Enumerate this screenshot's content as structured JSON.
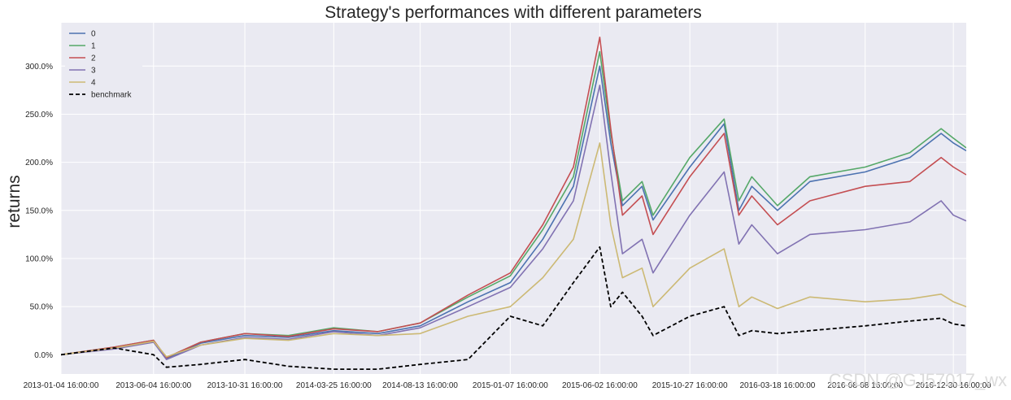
{
  "chart_data": {
    "type": "line",
    "title": "Strategy's performances with different parameters",
    "xlabel": "",
    "ylabel": "returns",
    "ylim": [
      -0.2,
      3.45
    ],
    "yticks": [
      0,
      0.5,
      1.0,
      1.5,
      2.0,
      2.5,
      3.0
    ],
    "ytick_labels": [
      "0.0%",
      "50.0%",
      "100.0%",
      "150.0%",
      "200.0%",
      "250.0%",
      "300.0%"
    ],
    "xlim": [
      "2013-01-04",
      "2017-01-20"
    ],
    "xtick_labels": [
      "2013-01-04 16:00:00",
      "2013-06-04 16:00:00",
      "2013-10-31 16:00:00",
      "2014-03-25 16:00:00",
      "2014-08-13 16:00:00",
      "2015-01-07 16:00:00",
      "2015-06-02 16:00:00",
      "2015-10-27 16:00:00",
      "2016-03-18 16:00:00",
      "2016-08-08 16:00:00",
      "2016-12-30 16:00:00"
    ],
    "grid": true,
    "legend_position": "top-left",
    "x": [
      "2013-01-04",
      "2013-04-01",
      "2013-06-04",
      "2013-06-25",
      "2013-08-20",
      "2013-10-31",
      "2014-01-10",
      "2014-03-25",
      "2014-06-05",
      "2014-08-13",
      "2014-10-30",
      "2015-01-07",
      "2015-03-01",
      "2015-04-20",
      "2015-06-02",
      "2015-06-20",
      "2015-07-09",
      "2015-08-10",
      "2015-08-28",
      "2015-10-27",
      "2015-12-22",
      "2016-01-15",
      "2016-02-05",
      "2016-03-18",
      "2016-05-10",
      "2016-08-08",
      "2016-10-20",
      "2016-12-10",
      "2016-12-30",
      "2017-01-20"
    ],
    "series": [
      {
        "name": "0",
        "color": "#4c72b0",
        "values": [
          0.0,
          0.07,
          0.14,
          -0.04,
          0.12,
          0.2,
          0.18,
          0.25,
          0.22,
          0.3,
          0.55,
          0.75,
          1.2,
          1.75,
          3.0,
          2.2,
          1.55,
          1.75,
          1.4,
          1.95,
          2.4,
          1.5,
          1.75,
          1.5,
          1.8,
          1.9,
          2.05,
          2.3,
          2.2,
          2.12
        ]
      },
      {
        "name": "1",
        "color": "#55a868",
        "values": [
          0.0,
          0.08,
          0.15,
          -0.03,
          0.13,
          0.22,
          0.2,
          0.28,
          0.24,
          0.33,
          0.6,
          0.82,
          1.3,
          1.85,
          3.15,
          2.3,
          1.6,
          1.8,
          1.45,
          2.05,
          2.45,
          1.6,
          1.85,
          1.55,
          1.85,
          1.95,
          2.1,
          2.35,
          2.25,
          2.15
        ]
      },
      {
        "name": "2",
        "color": "#c44e52",
        "values": [
          0.0,
          0.08,
          0.15,
          -0.03,
          0.13,
          0.22,
          0.19,
          0.27,
          0.24,
          0.33,
          0.62,
          0.85,
          1.35,
          1.95,
          3.3,
          2.35,
          1.45,
          1.65,
          1.25,
          1.85,
          2.3,
          1.45,
          1.65,
          1.35,
          1.6,
          1.75,
          1.8,
          2.05,
          1.95,
          1.87
        ]
      },
      {
        "name": "3",
        "color": "#8172b2",
        "values": [
          0.0,
          0.06,
          0.13,
          -0.05,
          0.1,
          0.18,
          0.16,
          0.24,
          0.2,
          0.28,
          0.5,
          0.7,
          1.1,
          1.6,
          2.8,
          1.9,
          1.05,
          1.2,
          0.85,
          1.45,
          1.9,
          1.15,
          1.35,
          1.05,
          1.25,
          1.3,
          1.38,
          1.6,
          1.45,
          1.39
        ]
      },
      {
        "name": "4",
        "color": "#ccb974",
        "values": [
          0.0,
          0.07,
          0.14,
          -0.02,
          0.1,
          0.17,
          0.15,
          0.22,
          0.2,
          0.22,
          0.4,
          0.5,
          0.8,
          1.2,
          2.2,
          1.35,
          0.8,
          0.9,
          0.5,
          0.9,
          1.1,
          0.5,
          0.6,
          0.48,
          0.6,
          0.55,
          0.58,
          0.63,
          0.55,
          0.5
        ]
      },
      {
        "name": "benchmark",
        "color": "#000000",
        "dashed": true,
        "values": [
          0.0,
          0.07,
          0.0,
          -0.13,
          -0.1,
          -0.05,
          -0.12,
          -0.15,
          -0.15,
          -0.1,
          -0.05,
          0.4,
          0.3,
          0.75,
          1.12,
          0.5,
          0.65,
          0.4,
          0.2,
          0.4,
          0.5,
          0.2,
          0.25,
          0.22,
          0.25,
          0.3,
          0.35,
          0.38,
          0.32,
          0.3
        ]
      }
    ]
  },
  "watermark": "CSDN @GJ57017_wx"
}
